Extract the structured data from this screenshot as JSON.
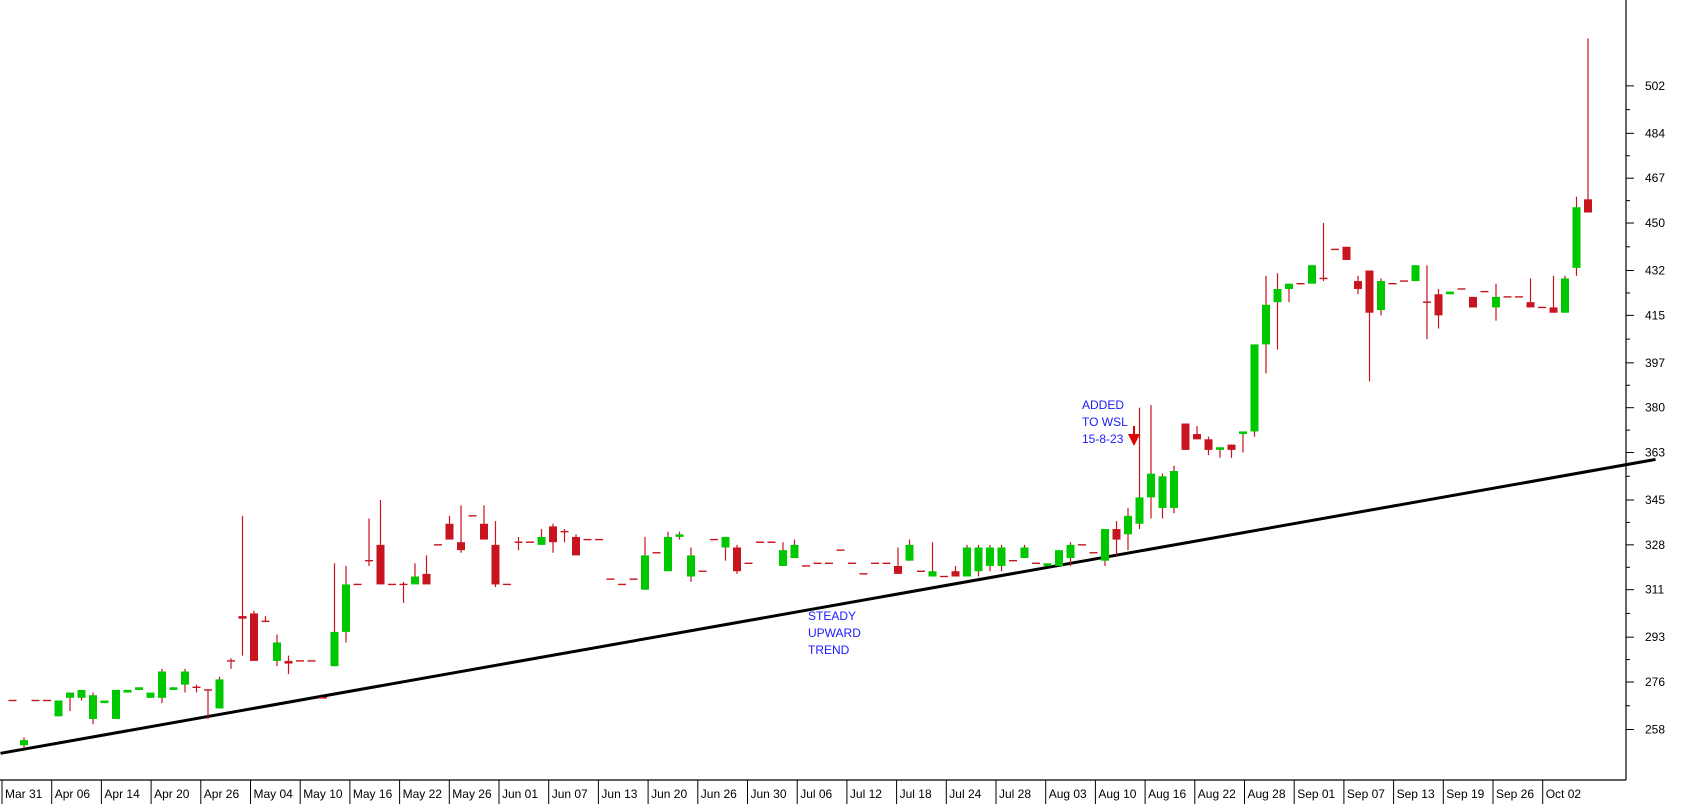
{
  "chart_data": {
    "type": "candlestick",
    "grid": false,
    "y_axis": {
      "position": "right",
      "ticks": [
        258,
        276,
        293,
        311,
        328,
        345,
        363,
        380,
        397,
        415,
        432,
        450,
        467,
        484,
        502
      ],
      "range": [
        242,
        520
      ]
    },
    "x_axis": {
      "labels": [
        "Mar 31",
        "Apr 06",
        "Apr 14",
        "Apr 20",
        "Apr 26",
        "May 04",
        "May 10",
        "May 16",
        "May 22",
        "May 26",
        "Jun 01",
        "Jun 07",
        "Jun 13",
        "Jun 20",
        "Jun 26",
        "Jun 30",
        "Jul 06",
        "Jul 12",
        "Jul 18",
        "Jul 24",
        "Jul 28",
        "Aug 03",
        "Aug 10",
        "Aug 16",
        "Aug 22",
        "Aug 28",
        "Sep 01",
        "Sep 07",
        "Sep 13",
        "Sep 19",
        "Sep 26",
        "Oct 02"
      ]
    },
    "candles": [
      [
        269,
        269,
        269,
        269
      ],
      [
        252,
        251,
        254,
        255
      ],
      [
        269,
        269,
        269,
        269
      ],
      [
        269,
        269,
        269,
        269
      ],
      [
        263,
        263,
        269,
        269
      ],
      [
        270,
        265,
        272,
        272
      ],
      [
        270,
        269,
        273,
        273
      ],
      [
        262,
        260,
        271,
        272
      ],
      [
        268,
        268,
        269,
        269
      ],
      [
        262,
        262,
        273,
        273
      ],
      [
        272,
        272,
        273,
        273
      ],
      [
        273,
        273,
        274,
        274
      ],
      [
        270,
        270,
        272,
        272
      ],
      [
        270,
        268,
        280,
        281
      ],
      [
        273,
        273,
        274,
        274
      ],
      [
        275,
        272,
        280,
        281
      ],
      [
        274,
        272,
        274,
        275
      ],
      [
        273,
        262,
        273,
        273
      ],
      [
        266,
        266,
        277,
        278
      ],
      [
        284,
        281,
        284,
        285
      ],
      [
        301,
        286,
        300,
        339
      ],
      [
        302,
        284,
        284,
        303
      ],
      [
        299,
        299,
        299,
        301
      ],
      [
        284,
        282,
        291,
        294
      ],
      [
        284,
        279,
        283,
        286
      ],
      [
        284,
        284,
        284,
        284
      ],
      [
        284,
        284,
        284,
        284
      ],
      [
        270,
        270,
        270,
        270
      ],
      [
        282,
        282,
        295,
        321
      ],
      [
        295,
        291,
        313,
        320
      ],
      [
        313,
        313,
        313,
        313
      ],
      [
        322,
        320,
        322,
        338
      ],
      [
        328,
        314,
        313,
        345
      ],
      [
        313,
        313,
        313,
        313
      ],
      [
        313,
        306,
        313,
        314
      ],
      [
        313,
        313,
        316,
        321
      ],
      [
        317,
        317,
        313,
        324
      ],
      [
        328,
        328,
        328,
        328
      ],
      [
        336,
        336,
        330,
        339
      ],
      [
        329,
        325,
        326,
        343
      ],
      [
        339,
        339,
        339,
        339
      ],
      [
        336,
        336,
        330,
        343
      ],
      [
        328,
        312,
        313,
        337
      ],
      [
        313,
        313,
        313,
        313
      ],
      [
        329,
        326,
        329,
        331
      ],
      [
        329,
        329,
        329,
        329
      ],
      [
        328,
        328,
        331,
        334
      ],
      [
        335,
        325,
        329,
        336
      ],
      [
        333,
        329,
        333,
        334
      ],
      [
        331,
        326,
        324,
        332
      ],
      [
        330,
        330,
        330,
        330
      ],
      [
        330,
        330,
        330,
        330
      ],
      [
        315,
        315,
        315,
        315
      ],
      [
        313,
        313,
        313,
        313
      ],
      [
        315,
        315,
        315,
        315
      ],
      [
        311,
        311,
        324,
        331
      ],
      [
        325,
        325,
        325,
        325
      ],
      [
        318,
        318,
        331,
        333
      ],
      [
        331,
        330,
        332,
        333
      ],
      [
        316,
        314,
        324,
        327
      ],
      [
        318,
        318,
        318,
        318
      ],
      [
        330,
        330,
        330,
        330
      ],
      [
        327,
        322,
        331,
        331
      ],
      [
        327,
        317,
        318,
        328
      ],
      [
        321,
        321,
        321,
        321
      ],
      [
        329,
        329,
        329,
        329
      ],
      [
        329,
        329,
        329,
        329
      ],
      [
        320,
        320,
        326,
        329
      ],
      [
        323,
        323,
        328,
        330
      ],
      [
        320,
        320,
        320,
        320
      ],
      [
        321,
        321,
        321,
        321
      ],
      [
        321,
        321,
        321,
        321
      ],
      [
        326,
        326,
        326,
        326
      ],
      [
        321,
        321,
        321,
        321
      ],
      [
        317,
        317,
        317,
        317
      ],
      [
        321,
        321,
        321,
        321
      ],
      [
        321,
        321,
        321,
        321
      ],
      [
        320,
        320,
        317,
        327
      ],
      [
        322,
        322,
        328,
        330
      ],
      [
        318,
        318,
        318,
        318
      ],
      [
        316,
        316,
        318,
        329
      ],
      [
        316,
        316,
        316,
        316
      ],
      [
        318,
        317,
        316,
        320
      ],
      [
        316,
        316,
        327,
        328
      ],
      [
        318,
        316,
        327,
        328
      ],
      [
        320,
        318,
        327,
        328
      ],
      [
        320,
        318,
        327,
        328
      ],
      [
        322,
        322,
        322,
        322
      ],
      [
        323,
        323,
        327,
        328
      ],
      [
        321,
        321,
        321,
        321
      ],
      [
        320,
        320,
        321,
        321
      ],
      [
        320,
        320,
        326,
        326
      ],
      [
        323,
        320,
        328,
        329
      ],
      [
        328,
        328,
        328,
        328
      ],
      [
        325,
        325,
        325,
        325
      ],
      [
        322,
        320,
        334,
        334
      ],
      [
        334,
        324,
        330,
        337
      ],
      [
        332,
        326,
        339,
        342
      ],
      [
        336,
        334,
        346,
        380
      ],
      [
        346,
        338,
        355,
        381
      ],
      [
        342,
        338,
        354,
        355
      ],
      [
        342,
        340,
        356,
        358
      ],
      [
        374,
        364,
        364,
        374
      ],
      [
        370,
        368,
        368,
        373
      ],
      [
        368,
        362,
        364,
        369
      ],
      [
        364,
        361,
        365,
        365
      ],
      [
        366,
        361,
        364,
        366
      ],
      [
        370,
        363,
        371,
        371
      ],
      [
        371,
        369,
        404,
        404
      ],
      [
        404,
        393,
        419,
        430
      ],
      [
        420,
        402,
        425,
        431
      ],
      [
        425,
        420,
        427,
        427
      ],
      [
        427,
        427,
        427,
        427
      ],
      [
        427,
        427,
        434,
        434
      ],
      [
        429,
        428,
        429,
        450
      ],
      [
        440,
        440,
        440,
        440
      ],
      [
        441,
        436,
        436,
        441
      ],
      [
        428,
        423,
        425,
        430
      ],
      [
        432,
        390,
        416,
        432
      ],
      [
        417,
        415,
        428,
        429
      ],
      [
        427,
        427,
        427,
        427
      ],
      [
        428,
        428,
        428,
        428
      ],
      [
        428,
        428,
        434,
        434
      ],
      [
        420,
        406,
        420,
        434
      ],
      [
        423,
        410,
        415,
        425
      ],
      [
        423,
        423,
        424,
        424
      ],
      [
        425,
        425,
        425,
        425
      ],
      [
        422,
        418,
        418,
        422
      ],
      [
        424,
        424,
        424,
        424
      ],
      [
        418,
        413,
        422,
        427
      ],
      [
        422,
        422,
        422,
        422
      ],
      [
        422,
        422,
        422,
        422
      ],
      [
        420,
        420,
        418,
        429
      ],
      [
        418,
        418,
        418,
        418
      ],
      [
        418,
        416,
        416,
        430
      ],
      [
        416,
        416,
        429,
        430
      ],
      [
        433,
        430,
        456,
        460
      ],
      [
        459,
        455,
        454,
        520
      ]
    ],
    "trendline": {
      "from": [
        0,
        252
      ],
      "to": [
        142,
        360
      ]
    },
    "annotations": [
      {
        "lines": [
          "ADDED",
          "TO WSL",
          "15-8-23"
        ],
        "arrow": "down"
      },
      {
        "lines": [
          "STEADY",
          "UPWARD",
          "TREND"
        ]
      }
    ],
    "colors": {
      "up": "#00c800",
      "down": "#c8141e",
      "wick": "#c8141e",
      "annotation": "#1a1aff",
      "trendline": "#000000"
    }
  }
}
